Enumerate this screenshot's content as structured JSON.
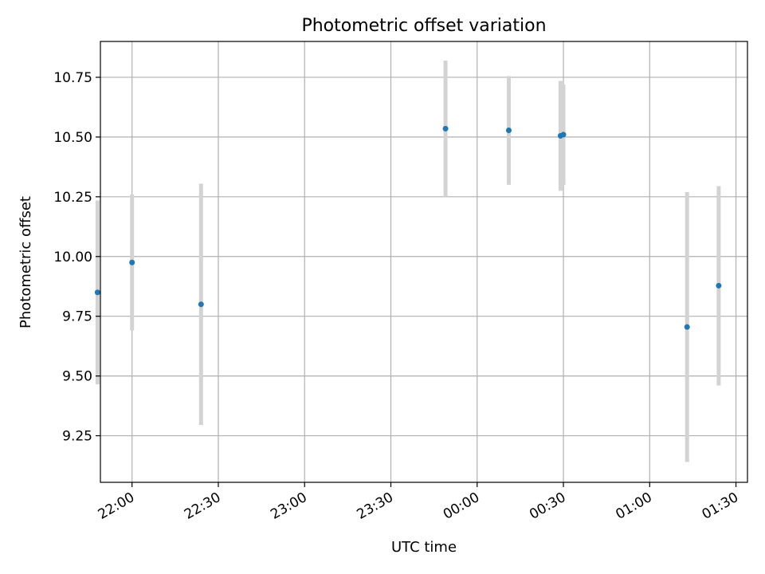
{
  "chart_data": {
    "type": "scatter",
    "title": "Photometric offset variation",
    "xlabel": "UTC time",
    "ylabel": "Photometric offset",
    "grid": true,
    "x_axis_kind": "time",
    "xlim": [
      "21:49",
      "01:34"
    ],
    "ylim": [
      9.055,
      10.9
    ],
    "x_ticks": [
      "22:00",
      "22:30",
      "23:00",
      "23:30",
      "00:00",
      "00:30",
      "01:00",
      "01:30"
    ],
    "y_ticks": [
      "9.25",
      "9.50",
      "9.75",
      "10.00",
      "10.25",
      "10.50",
      "10.75"
    ],
    "series": [
      {
        "marker_color": "#1f77b4",
        "errorbar_color": "#d3d3d3",
        "points": [
          {
            "x": "21:48",
            "y": 9.85,
            "err_low": 9.465,
            "err_high": 10.235
          },
          {
            "x": "22:00",
            "y": 9.975,
            "err_low": 9.69,
            "err_high": 10.26
          },
          {
            "x": "22:24",
            "y": 9.8,
            "err_low": 9.295,
            "err_high": 10.305
          },
          {
            "x": "23:49",
            "y": 10.535,
            "err_low": 10.25,
            "err_high": 10.82
          },
          {
            "x": "00:11",
            "y": 10.528,
            "err_low": 10.3,
            "err_high": 10.755
          },
          {
            "x": "00:29",
            "y": 10.505,
            "err_low": 10.275,
            "err_high": 10.735
          },
          {
            "x": "00:30",
            "y": 10.51,
            "err_low": 10.3,
            "err_high": 10.72
          },
          {
            "x": "01:13",
            "y": 9.705,
            "err_low": 9.14,
            "err_high": 10.27
          },
          {
            "x": "01:24",
            "y": 9.878,
            "err_low": 9.46,
            "err_high": 10.295
          }
        ]
      }
    ]
  }
}
